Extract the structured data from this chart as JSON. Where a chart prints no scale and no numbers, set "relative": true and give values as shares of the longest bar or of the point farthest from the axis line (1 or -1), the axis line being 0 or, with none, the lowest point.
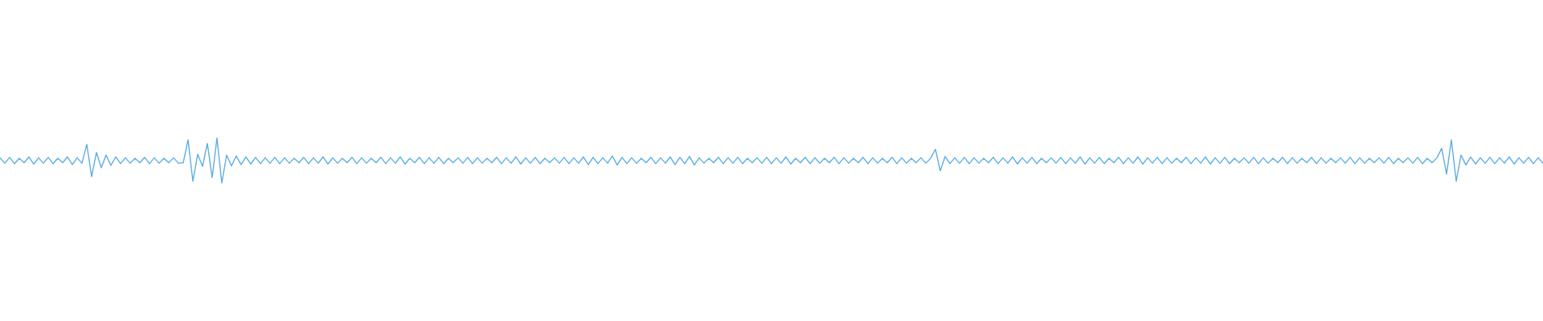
{
  "chart_data": {
    "type": "line",
    "relative": true,
    "categories": [
      null,
      null,
      null,
      null,
      null,
      null,
      null,
      null,
      null,
      null,
      null,
      null,
      null,
      null,
      null,
      null,
      null,
      null,
      null,
      null,
      null,
      null,
      null,
      null,
      null,
      null,
      null,
      null,
      null,
      null,
      null,
      null,
      null,
      null,
      null,
      null,
      null,
      null,
      null,
      null,
      null,
      null,
      null,
      null,
      null,
      null,
      null,
      null,
      null,
      null,
      null,
      null,
      null,
      null,
      null,
      null,
      null,
      null,
      null,
      null,
      null,
      null,
      null,
      null,
      null,
      null,
      null,
      null,
      null,
      null,
      null,
      null,
      null,
      null,
      null,
      null,
      null,
      null,
      null,
      null,
      null,
      null,
      null,
      null,
      null,
      null,
      null,
      null,
      null,
      null,
      null,
      null,
      null,
      null,
      null,
      null,
      null,
      null,
      null,
      null,
      null,
      null,
      null,
      null,
      null,
      null,
      null,
      null,
      null,
      null,
      null,
      null,
      null,
      null,
      null,
      null,
      null,
      null,
      null,
      null,
      null,
      null,
      null,
      null,
      null,
      null,
      null,
      null,
      null,
      null,
      null,
      null,
      null,
      null,
      null,
      null,
      null,
      null,
      null,
      null,
      null,
      null,
      null,
      null,
      null,
      null,
      null,
      null,
      null,
      null,
      null,
      null,
      null,
      null,
      null,
      null,
      null,
      null,
      null,
      null,
      null,
      null,
      null,
      null,
      null,
      null,
      null,
      null,
      null,
      null,
      null,
      null,
      null,
      null,
      null,
      null,
      null,
      null,
      null,
      null,
      null,
      null,
      null,
      null,
      null,
      null,
      null,
      null,
      null,
      null,
      null,
      null,
      null,
      null,
      null,
      null,
      null,
      null,
      null,
      null,
      null,
      null,
      null,
      null,
      null,
      null,
      null,
      null,
      null,
      null,
      null,
      null,
      null,
      null,
      null,
      null,
      null,
      null,
      null,
      null,
      null,
      null,
      null,
      null,
      null,
      null,
      null,
      null,
      null,
      null,
      null,
      null,
      null,
      null,
      null,
      null,
      null,
      null,
      null,
      null,
      null,
      null,
      null,
      null,
      null,
      null,
      null,
      null,
      null,
      null,
      null,
      null,
      null,
      null,
      null,
      null,
      null,
      null,
      null,
      null,
      null,
      null,
      null,
      null,
      null,
      null,
      null,
      null,
      null,
      null,
      null,
      null,
      null,
      null,
      null,
      null,
      null,
      null,
      null,
      null,
      null,
      null,
      null,
      null,
      null,
      null,
      null,
      null,
      null,
      null,
      null,
      null,
      null,
      null,
      null,
      null,
      null,
      null,
      null,
      null,
      null,
      null,
      null,
      null,
      null,
      null,
      null,
      null,
      null,
      null,
      null,
      null,
      null,
      null,
      null,
      null,
      null,
      null,
      null,
      null,
      null
    ],
    "series": [
      {
        "color": "#5dade2",
        "values": [
          0.56,
          0.44,
          0.57,
          0.43,
          0.55,
          0.45,
          0.58,
          0.42,
          0.56,
          0.44,
          0.57,
          0.43,
          0.55,
          0.45,
          0.58,
          0.41,
          0.56,
          0.44,
          0.86,
          0.14,
          0.68,
          0.34,
          0.62,
          0.39,
          0.58,
          0.43,
          0.56,
          0.44,
          0.55,
          0.45,
          0.57,
          0.43,
          0.56,
          0.44,
          0.55,
          0.45,
          0.56,
          0.44,
          0.45,
          0.96,
          0.04,
          0.64,
          0.37,
          0.88,
          0.12,
          1.0,
          0.0,
          0.62,
          0.38,
          0.6,
          0.41,
          0.58,
          0.42,
          0.57,
          0.43,
          0.56,
          0.44,
          0.57,
          0.43,
          0.56,
          0.44,
          0.55,
          0.45,
          0.57,
          0.43,
          0.56,
          0.44,
          0.58,
          0.42,
          0.56,
          0.44,
          0.55,
          0.45,
          0.57,
          0.43,
          0.56,
          0.44,
          0.55,
          0.45,
          0.57,
          0.43,
          0.56,
          0.44,
          0.58,
          0.42,
          0.55,
          0.45,
          0.57,
          0.43,
          0.56,
          0.44,
          0.57,
          0.43,
          0.55,
          0.45,
          0.56,
          0.44,
          0.57,
          0.43,
          0.56,
          0.44,
          0.55,
          0.45,
          0.57,
          0.43,
          0.56,
          0.44,
          0.58,
          0.42,
          0.56,
          0.44,
          0.57,
          0.43,
          0.55,
          0.45,
          0.56,
          0.44,
          0.57,
          0.43,
          0.56,
          0.44,
          0.58,
          0.41,
          0.57,
          0.43,
          0.56,
          0.44,
          0.6,
          0.4,
          0.57,
          0.43,
          0.56,
          0.44,
          0.55,
          0.45,
          0.57,
          0.43,
          0.56,
          0.44,
          0.58,
          0.41,
          0.57,
          0.43,
          0.59,
          0.4,
          0.56,
          0.44,
          0.55,
          0.45,
          0.57,
          0.43,
          0.56,
          0.44,
          0.57,
          0.43,
          0.55,
          0.45,
          0.56,
          0.44,
          0.57,
          0.43,
          0.56,
          0.44,
          0.58,
          0.42,
          0.55,
          0.45,
          0.57,
          0.43,
          0.56,
          0.44,
          0.55,
          0.45,
          0.57,
          0.43,
          0.56,
          0.44,
          0.55,
          0.45,
          0.57,
          0.43,
          0.56,
          0.44,
          0.55,
          0.45,
          0.57,
          0.43,
          0.56,
          0.44,
          0.55,
          0.45,
          0.56,
          0.44,
          0.55,
          0.75,
          0.27,
          0.59,
          0.43,
          0.56,
          0.44,
          0.57,
          0.43,
          0.56,
          0.44,
          0.55,
          0.45,
          0.57,
          0.43,
          0.56,
          0.44,
          0.58,
          0.42,
          0.56,
          0.44,
          0.57,
          0.43,
          0.55,
          0.45,
          0.56,
          0.44,
          0.57,
          0.43,
          0.56,
          0.44,
          0.58,
          0.42,
          0.56,
          0.44,
          0.57,
          0.43,
          0.55,
          0.45,
          0.57,
          0.43,
          0.56,
          0.44,
          0.58,
          0.42,
          0.56,
          0.44,
          0.57,
          0.43,
          0.56,
          0.44,
          0.55,
          0.45,
          0.57,
          0.43,
          0.56,
          0.44,
          0.58,
          0.42,
          0.56,
          0.44,
          0.57,
          0.43,
          0.55,
          0.45,
          0.56,
          0.44,
          0.57,
          0.43,
          0.56,
          0.44,
          0.55,
          0.45,
          0.57,
          0.43,
          0.56,
          0.44,
          0.55,
          0.45,
          0.57,
          0.43,
          0.56,
          0.44,
          0.55,
          0.45,
          0.56,
          0.44,
          0.57,
          0.43,
          0.56,
          0.44,
          0.55,
          0.45,
          0.56,
          0.44,
          0.57,
          0.43,
          0.55,
          0.45,
          0.56,
          0.44,
          0.57,
          0.43,
          0.55,
          0.45,
          0.56,
          0.77,
          0.2,
          0.96,
          0.04,
          0.62,
          0.4,
          0.58,
          0.42,
          0.56,
          0.44,
          0.57,
          0.43,
          0.56,
          0.44,
          0.58,
          0.42,
          0.56,
          0.44,
          0.57,
          0.43,
          0.56,
          0.44
        ]
      }
    ]
  }
}
